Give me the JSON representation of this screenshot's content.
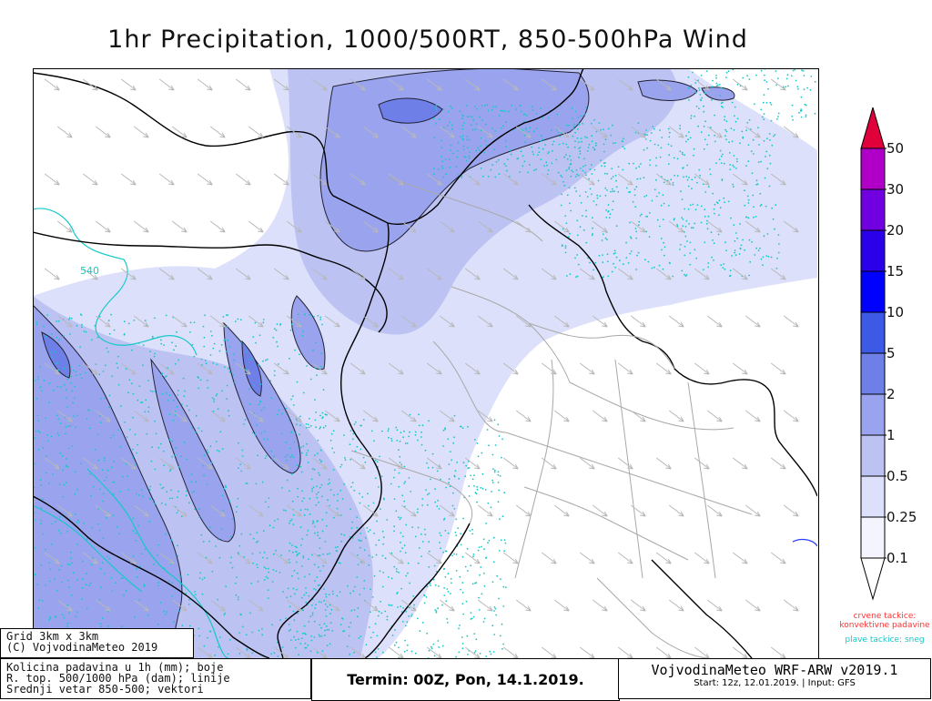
{
  "title": "1hr Precipitation, 1000/500RT, 850-500hPa Wind",
  "colorbar": {
    "levels": [
      "50",
      "30",
      "20",
      "15",
      "10",
      "5",
      "2",
      "1",
      "0.5",
      "0.25",
      "0.1"
    ],
    "colors": [
      "#e0003a",
      "#b000c8",
      "#7000e0",
      "#2a00e8",
      "#0000ff",
      "#3d5ae6",
      "#6e7fe8",
      "#9aa4ee",
      "#bcc3f3",
      "#dde0fa",
      "#f3f4fd",
      "#ffffff"
    ]
  },
  "contour_label": "540",
  "notes": {
    "convective": "crvene tackice: konvektivne padavine",
    "snow": "plave tackice: sneg"
  },
  "grid_box": {
    "line1": "Grid 3km x 3km",
    "line2": "(C) VojvodinaMeteo 2019"
  },
  "description_box": {
    "line1": "Kolicina padavina u 1h (mm); boje",
    "line2": "R. top. 500/1000 hPa (dam); linije",
    "line3": "Srednji vetar 850-500; vektori"
  },
  "termin": "Termin: 00Z, Pon, 14.1.2019.",
  "model": {
    "name": "VojvodinaMeteo WRF-ARW v2019.1",
    "start": "Start: 12z, 12.01.2019. | Input: GFS"
  },
  "theme": {
    "light_blue": "#dde0fa",
    "mid_blue": "#bcc3f3",
    "blue": "#9aa4ee",
    "dark_blue": "#6e7fe8",
    "snow_dots": "#14c8c8",
    "border": "#000000",
    "region_lines": "#a8a8a8",
    "vectors": "#b8b8b8"
  }
}
